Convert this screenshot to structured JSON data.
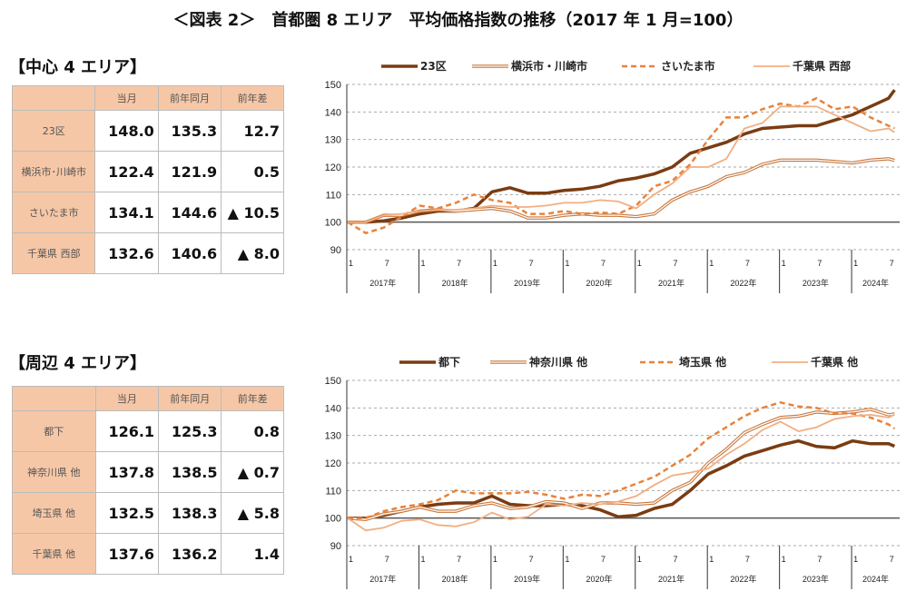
{
  "title": "＜図表 2＞　首都圏 8 エリア　平均価格指数の推移（2017 年 1 月=100）",
  "sections": [
    {
      "heading": "【中心 4 エリア】",
      "table": {
        "headers": [
          "",
          "当月",
          "前年同月",
          "前年差"
        ],
        "rows": [
          [
            "23区",
            "148.0",
            "135.3",
            "12.7"
          ],
          [
            "横浜市･川崎市",
            "122.4",
            "121.9",
            "0.5"
          ],
          [
            "さいたま市",
            "134.1",
            "144.6",
            "▲ 10.5"
          ],
          [
            "千葉県 西部",
            "132.6",
            "140.6",
            "▲ 8.0"
          ]
        ]
      }
    },
    {
      "heading": "【周辺 4 エリア】",
      "table": {
        "headers": [
          "",
          "当月",
          "前年同月",
          "前年差"
        ],
        "rows": [
          [
            "都下",
            "126.1",
            "125.3",
            "0.8"
          ],
          [
            "神奈川県 他",
            "137.8",
            "138.5",
            "▲ 0.7"
          ],
          [
            "埼玉県 他",
            "132.5",
            "138.3",
            "▲ 5.8"
          ],
          [
            "千葉県 他",
            "137.6",
            "136.2",
            "1.4"
          ]
        ]
      }
    }
  ],
  "colors": {
    "dark": "#7a3c12",
    "double": "#c8763a",
    "dashed": "#e8823a",
    "light": "#f2ae82"
  },
  "chart_data": [
    {
      "type": "line",
      "ylim": [
        90,
        150
      ],
      "yticks": [
        90,
        100,
        110,
        120,
        130,
        140,
        150
      ],
      "grid": true,
      "x_month_index": [
        0,
        3,
        6,
        9,
        12,
        15,
        18,
        21,
        24,
        27,
        30,
        33,
        36,
        39,
        42,
        45,
        48,
        51,
        54,
        57,
        60,
        63,
        66,
        69,
        72,
        75,
        78,
        81,
        84,
        87,
        90,
        91
      ],
      "years": [
        "2017年",
        "2018年",
        "2019年",
        "2020年",
        "2021年",
        "2022年",
        "2023年",
        "2024年"
      ],
      "month_ticks": [
        "1",
        "7"
      ],
      "legend": "top",
      "series": [
        {
          "name": "23区",
          "style": "dark",
          "values": [
            100,
            100,
            100.5,
            101.5,
            103,
            104,
            104,
            105,
            111,
            112.5,
            110.5,
            110.5,
            111.5,
            112,
            113,
            115,
            116,
            117.5,
            120,
            125,
            127,
            129,
            132,
            134,
            134.5,
            135,
            135,
            137,
            139,
            142,
            145,
            148
          ]
        },
        {
          "name": "横浜市・川崎市",
          "style": "double",
          "values": [
            100,
            100,
            102.5,
            102.5,
            104,
            104.5,
            104,
            104.5,
            105,
            104,
            101.5,
            101.5,
            102.5,
            103,
            102.5,
            102.5,
            102,
            103,
            108,
            111,
            113,
            116.5,
            118,
            121,
            122.5,
            122.5,
            122.5,
            122,
            121.5,
            122.5,
            123,
            122.4
          ]
        },
        {
          "name": "さいたま市",
          "style": "dashed",
          "values": [
            100,
            96,
            98,
            102,
            106,
            105,
            107,
            110,
            108,
            107,
            103,
            103,
            104,
            103,
            103.5,
            103,
            106,
            113,
            115,
            121,
            130,
            138,
            138,
            141,
            143,
            142,
            145,
            141,
            142,
            138,
            135,
            134.1
          ]
        },
        {
          "name": "千葉県 西部",
          "style": "light",
          "values": [
            100,
            100,
            102.5,
            103,
            104,
            104.5,
            104.5,
            105,
            106,
            105.5,
            105.5,
            106,
            107,
            107,
            108,
            107.5,
            105,
            110,
            114,
            120,
            120,
            123,
            134,
            136,
            142,
            142,
            142,
            139,
            136,
            133,
            134,
            132.6
          ]
        }
      ]
    },
    {
      "type": "line",
      "ylim": [
        90,
        150
      ],
      "yticks": [
        90,
        100,
        110,
        120,
        130,
        140,
        150
      ],
      "grid": true,
      "x_month_index": [
        0,
        3,
        6,
        9,
        12,
        15,
        18,
        21,
        24,
        27,
        30,
        33,
        36,
        39,
        42,
        45,
        48,
        51,
        54,
        57,
        60,
        63,
        66,
        69,
        72,
        75,
        78,
        81,
        84,
        87,
        90,
        91
      ],
      "years": [
        "2017年",
        "2018年",
        "2019年",
        "2020年",
        "2021年",
        "2022年",
        "2023年",
        "2024年"
      ],
      "month_ticks": [
        "1",
        "7"
      ],
      "legend": "top",
      "series": [
        {
          "name": "都下",
          "style": "dark",
          "values": [
            100,
            100,
            101,
            102.5,
            104,
            105,
            105.5,
            105.5,
            108,
            105,
            104.5,
            104.5,
            105,
            104.5,
            103,
            100.5,
            101,
            103.5,
            105,
            110,
            116,
            119,
            122.5,
            124.5,
            126.5,
            128,
            126,
            125.5,
            128,
            127,
            127,
            126.1
          ]
        },
        {
          "name": "神奈川県 他",
          "style": "double",
          "values": [
            100,
            99.5,
            101.5,
            102.5,
            104,
            102.5,
            102.5,
            104.5,
            105.5,
            103.5,
            104,
            106,
            105.5,
            103.5,
            105.5,
            105.5,
            105,
            105.5,
            110,
            113,
            120,
            125,
            131,
            134,
            136.5,
            137,
            138.5,
            138,
            138.5,
            139.5,
            137.5,
            137.8
          ]
        },
        {
          "name": "埼玉県 他",
          "style": "dashed",
          "values": [
            100,
            100,
            102.5,
            104,
            105,
            106.5,
            110,
            109,
            109,
            109,
            109.5,
            108.5,
            107,
            108.5,
            108,
            110,
            112.5,
            115,
            119,
            123,
            129,
            133,
            137,
            140,
            142,
            140.5,
            140,
            138,
            138,
            136.5,
            134,
            132.5
          ]
        },
        {
          "name": "千葉県 他",
          "style": "light",
          "values": [
            100,
            95.5,
            96.5,
            99,
            99.5,
            97.5,
            97,
            98.5,
            102,
            99.5,
            100.5,
            105,
            104.5,
            105.5,
            105,
            106,
            108,
            112,
            115.5,
            116.5,
            118,
            123,
            127,
            132,
            135,
            131.5,
            133,
            136,
            137,
            137.5,
            136.5,
            137.6
          ]
        }
      ]
    }
  ]
}
